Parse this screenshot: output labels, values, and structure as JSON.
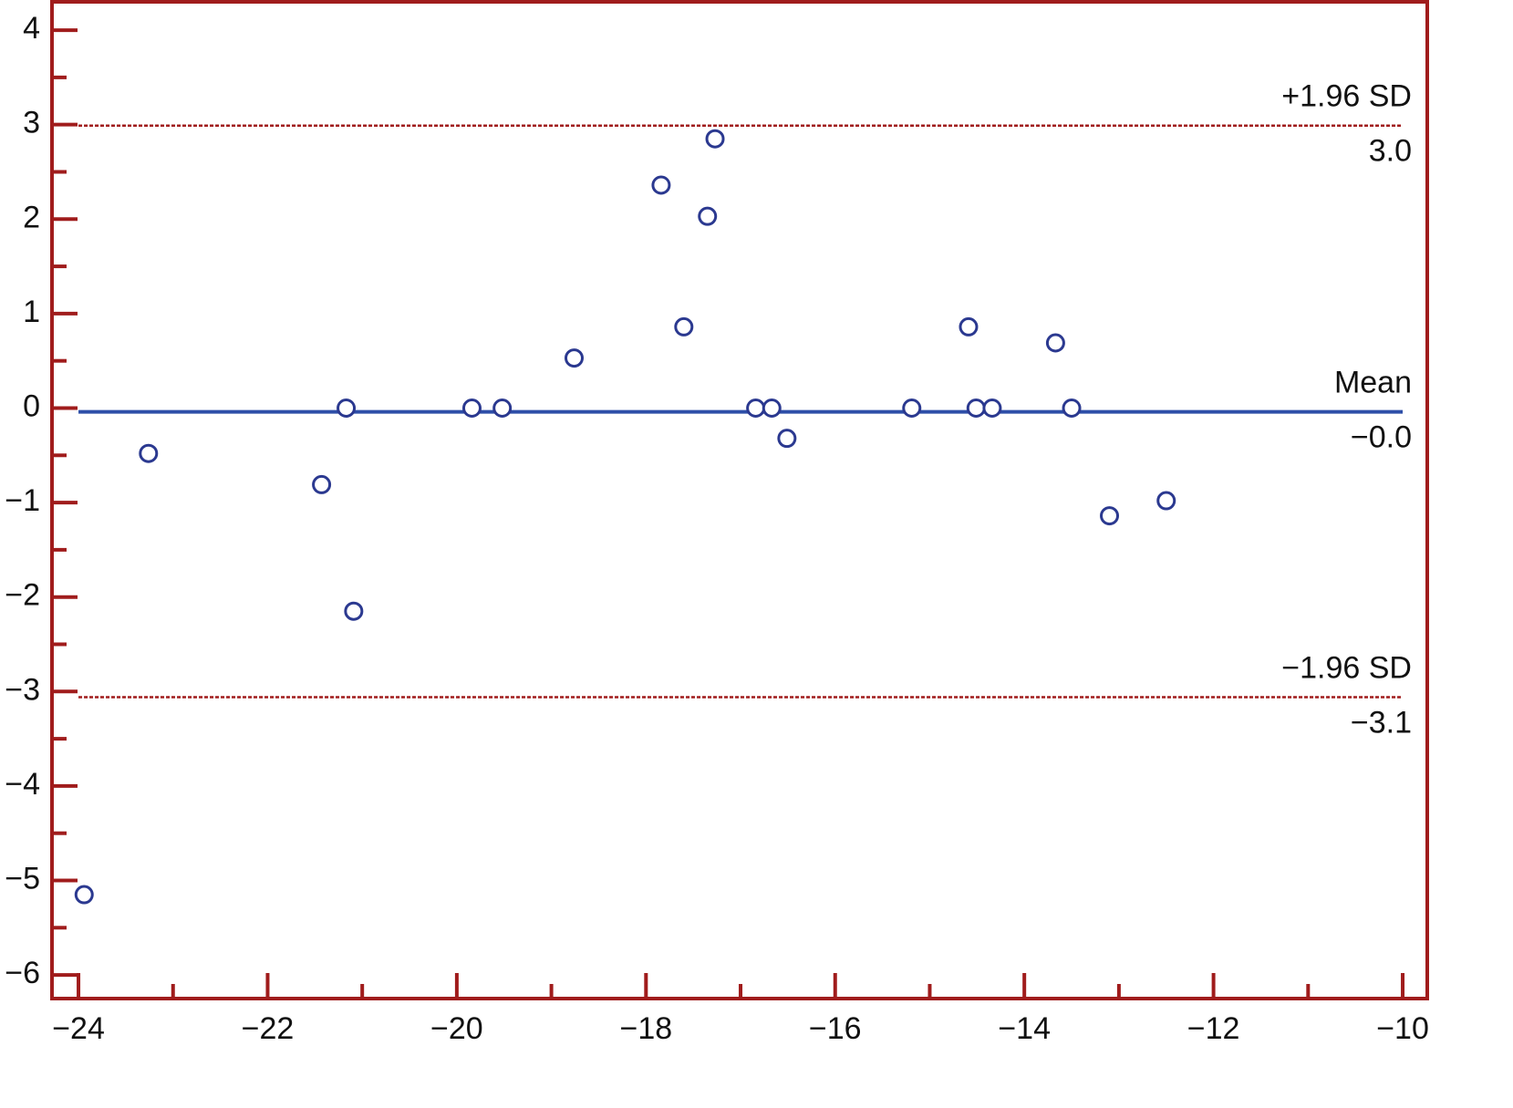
{
  "chart_data": {
    "type": "scatter",
    "xlim": [
      -24.28,
      -9.74
    ],
    "ylim": [
      -6.25,
      4.3
    ],
    "xticks": [
      {
        "value": -24,
        "label": "−24"
      },
      {
        "value": -22,
        "label": "−22"
      },
      {
        "value": -20,
        "label": "−20"
      },
      {
        "value": -18,
        "label": "−18"
      },
      {
        "value": -16,
        "label": "−16"
      },
      {
        "value": -14,
        "label": "−14"
      },
      {
        "value": -12,
        "label": "−12"
      },
      {
        "value": -10,
        "label": "−10"
      }
    ],
    "xminor_ticks": [
      -23,
      -21,
      -19,
      -17,
      -15,
      -13,
      -11
    ],
    "yticks": [
      {
        "value": -6,
        "label": "−6"
      },
      {
        "value": -5,
        "label": "−5"
      },
      {
        "value": -4,
        "label": "−4"
      },
      {
        "value": -3,
        "label": "−3"
      },
      {
        "value": -2,
        "label": "−2"
      },
      {
        "value": -1,
        "label": "−1"
      },
      0,
      1,
      2,
      3,
      4
    ],
    "yminor_ticks": [
      -5.5,
      -4.5,
      -3.5,
      -2.5,
      -1.5,
      -0.5,
      0.5,
      1.5,
      2.5,
      3.5
    ],
    "axis_color": "#a01c1c",
    "series": [
      {
        "color": "#2b3990",
        "x": [
          -23.94,
          -23.26,
          -21.43,
          -21.17,
          -21.09,
          -19.84,
          -19.52,
          -18.76,
          -17.84,
          -17.6,
          -17.35,
          -17.27,
          -16.84,
          -16.67,
          -16.51,
          -15.19,
          -14.59,
          -14.51,
          -14.34,
          -13.67,
          -13.5,
          -13.1,
          -12.5
        ],
        "values": [
          -5.15,
          -0.48,
          -0.81,
          0,
          -2.15,
          0,
          0,
          0.53,
          2.36,
          0.86,
          2.03,
          2.85,
          0,
          0,
          -0.32,
          0,
          0.86,
          0,
          0,
          0.69,
          0,
          -1.14,
          -0.98
        ]
      }
    ],
    "reference_lines": [
      {
        "name": "+1.96 SD",
        "value": 2.99,
        "value_label": "3.0",
        "color": "#a01c1c",
        "style": "dashed"
      },
      {
        "name": "Mean",
        "value": -0.04,
        "value_label": "−0.0",
        "color": "#2e4fa8",
        "style": "solid"
      },
      {
        "name": "−1.96 SD",
        "value": -3.06,
        "value_label": "−3.1",
        "color": "#a01c1c",
        "style": "dashed"
      }
    ]
  }
}
